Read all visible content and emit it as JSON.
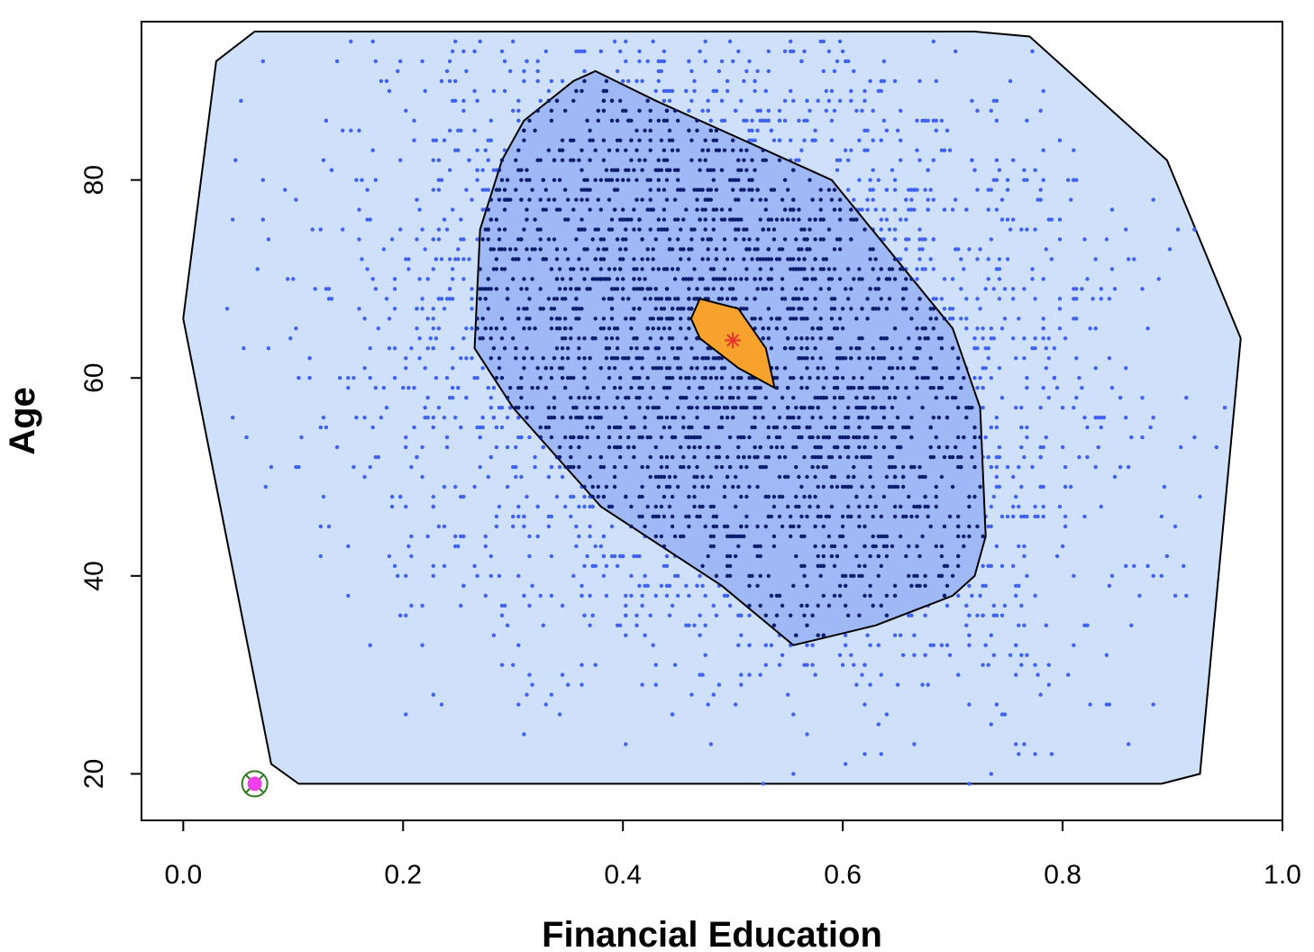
{
  "chart_data": {
    "type": "scatter",
    "subtype": "bagplot",
    "title": "",
    "xlabel": "Financial Education",
    "ylabel": "Age",
    "xlim": [
      -0.038,
      1.0
    ],
    "ylim": [
      15.3,
      96.0
    ],
    "x_ticks": [
      "0.0",
      "0.2",
      "0.4",
      "0.6",
      "0.8",
      "1.0"
    ],
    "y_ticks": [
      "20",
      "40",
      "60",
      "80"
    ],
    "grid": false,
    "legend": "none",
    "colors": {
      "fence": "#cfe0fb",
      "bag": "#9fb8f6",
      "loop_points": "#3f63f0",
      "bag_points": "#0b1b6e",
      "center": "#f7a22d",
      "median_marker": "#e8302c",
      "outlier_fill": "#f03ee8",
      "outlier_ring": "#2d7a1e",
      "outline": "#000000"
    },
    "loop_polygon": [
      [
        0.065,
        95
      ],
      [
        0.72,
        95
      ],
      [
        0.77,
        94.5
      ],
      [
        0.895,
        82
      ],
      [
        0.962,
        64
      ],
      [
        0.925,
        20
      ],
      [
        0.89,
        19
      ],
      [
        0.105,
        19
      ],
      [
        0.08,
        21
      ],
      [
        0.0,
        66
      ],
      [
        0.03,
        92
      ]
    ],
    "bag_polygon": [
      [
        0.375,
        91
      ],
      [
        0.43,
        88
      ],
      [
        0.53,
        83
      ],
      [
        0.59,
        80
      ],
      [
        0.7,
        65
      ],
      [
        0.725,
        57
      ],
      [
        0.73,
        44
      ],
      [
        0.72,
        40
      ],
      [
        0.7,
        38
      ],
      [
        0.63,
        35
      ],
      [
        0.555,
        33
      ],
      [
        0.49,
        39
      ],
      [
        0.38,
        47
      ],
      [
        0.3,
        57
      ],
      [
        0.265,
        63
      ],
      [
        0.27,
        75
      ],
      [
        0.29,
        82
      ],
      [
        0.31,
        86
      ],
      [
        0.355,
        90
      ]
    ],
    "center_polygon": [
      [
        0.47,
        68
      ],
      [
        0.505,
        67
      ],
      [
        0.53,
        63
      ],
      [
        0.538,
        59
      ],
      [
        0.505,
        61
      ],
      [
        0.47,
        64
      ],
      [
        0.462,
        66
      ]
    ],
    "median": {
      "x": 0.5,
      "y": 63.8
    },
    "outliers": [
      {
        "x": 0.065,
        "y": 19
      }
    ]
  }
}
